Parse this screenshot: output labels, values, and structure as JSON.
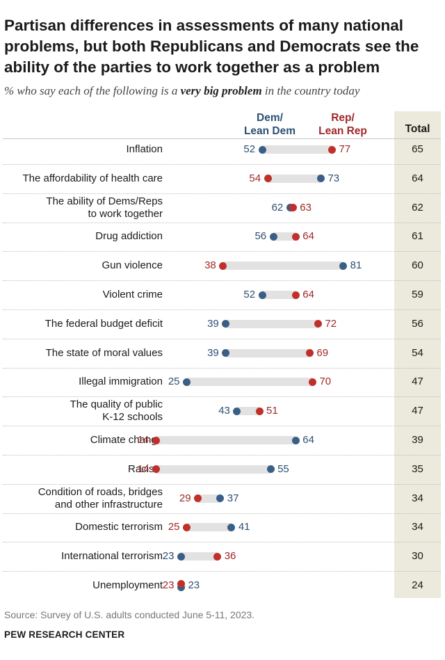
{
  "header": {
    "title": "Partisan differences in assessments of many national problems, but both Republicans and Democrats see the ability of the parties to work together as a problem",
    "subtitle_pre": "% who say each of the following is a ",
    "subtitle_emph": "very big problem",
    "subtitle_post": " in the country today"
  },
  "columns": {
    "dem_line1": "Dem/",
    "dem_line2": "Lean Dem",
    "rep_line1": "Rep/",
    "rep_line2": "Lean Rep",
    "total": "Total"
  },
  "colors": {
    "dem": "#3a5f86",
    "rep": "#c0302b",
    "bar": "#e2e2e2",
    "total_band": "#ebeadc"
  },
  "chart_data": {
    "type": "dot",
    "title": "Partisan differences in assessments of many national problems, but both Republicans and Democrats see the ability of the parties to work together as a problem",
    "subtitle": "% who say each of the following is a very big problem in the country today",
    "series": [
      {
        "name": "Dem/Lean Dem",
        "color": "#3a5f86"
      },
      {
        "name": "Rep/Lean Rep",
        "color": "#c0302b"
      },
      {
        "name": "Total"
      }
    ],
    "rows": [
      {
        "lines": [
          "Inflation"
        ],
        "dem": 52,
        "rep": 77,
        "total": 65
      },
      {
        "lines": [
          "The affordability of health care"
        ],
        "dem": 73,
        "rep": 54,
        "total": 64
      },
      {
        "lines": [
          "The ability of Dems/Reps",
          "to work together"
        ],
        "dem": 62,
        "rep": 63,
        "total": 62
      },
      {
        "lines": [
          "Drug addiction"
        ],
        "dem": 56,
        "rep": 64,
        "total": 61
      },
      {
        "lines": [
          "Gun violence"
        ],
        "dem": 81,
        "rep": 38,
        "total": 60
      },
      {
        "lines": [
          "Violent crime"
        ],
        "dem": 52,
        "rep": 64,
        "total": 59
      },
      {
        "lines": [
          "The federal budget deficit"
        ],
        "dem": 39,
        "rep": 72,
        "total": 56
      },
      {
        "lines": [
          "The state of moral values"
        ],
        "dem": 39,
        "rep": 69,
        "total": 54
      },
      {
        "lines": [
          "Illegal immigration"
        ],
        "dem": 25,
        "rep": 70,
        "total": 47
      },
      {
        "lines": [
          "The quality of public",
          "K-12 schools"
        ],
        "dem": 43,
        "rep": 51,
        "total": 47
      },
      {
        "lines": [
          "Climate change"
        ],
        "dem": 64,
        "rep": 14,
        "total": 39
      },
      {
        "lines": [
          "Racism"
        ],
        "dem": 55,
        "rep": 14,
        "total": 35
      },
      {
        "lines": [
          "Condition of roads, bridges",
          "and other infrastructure"
        ],
        "dem": 37,
        "rep": 29,
        "total": 34
      },
      {
        "lines": [
          "Domestic terrorism"
        ],
        "dem": 41,
        "rep": 25,
        "total": 34
      },
      {
        "lines": [
          "International terrorism"
        ],
        "dem": 23,
        "rep": 36,
        "total": 30
      },
      {
        "lines": [
          "Unemployment"
        ],
        "dem": 23,
        "rep": 23,
        "total": 24
      }
    ],
    "xlim": [
      0,
      100
    ],
    "legend": "column headers"
  },
  "footer": {
    "source": "Source: Survey of U.S. adults conducted June 5-11, 2023.",
    "brand": "PEW RESEARCH CENTER"
  }
}
